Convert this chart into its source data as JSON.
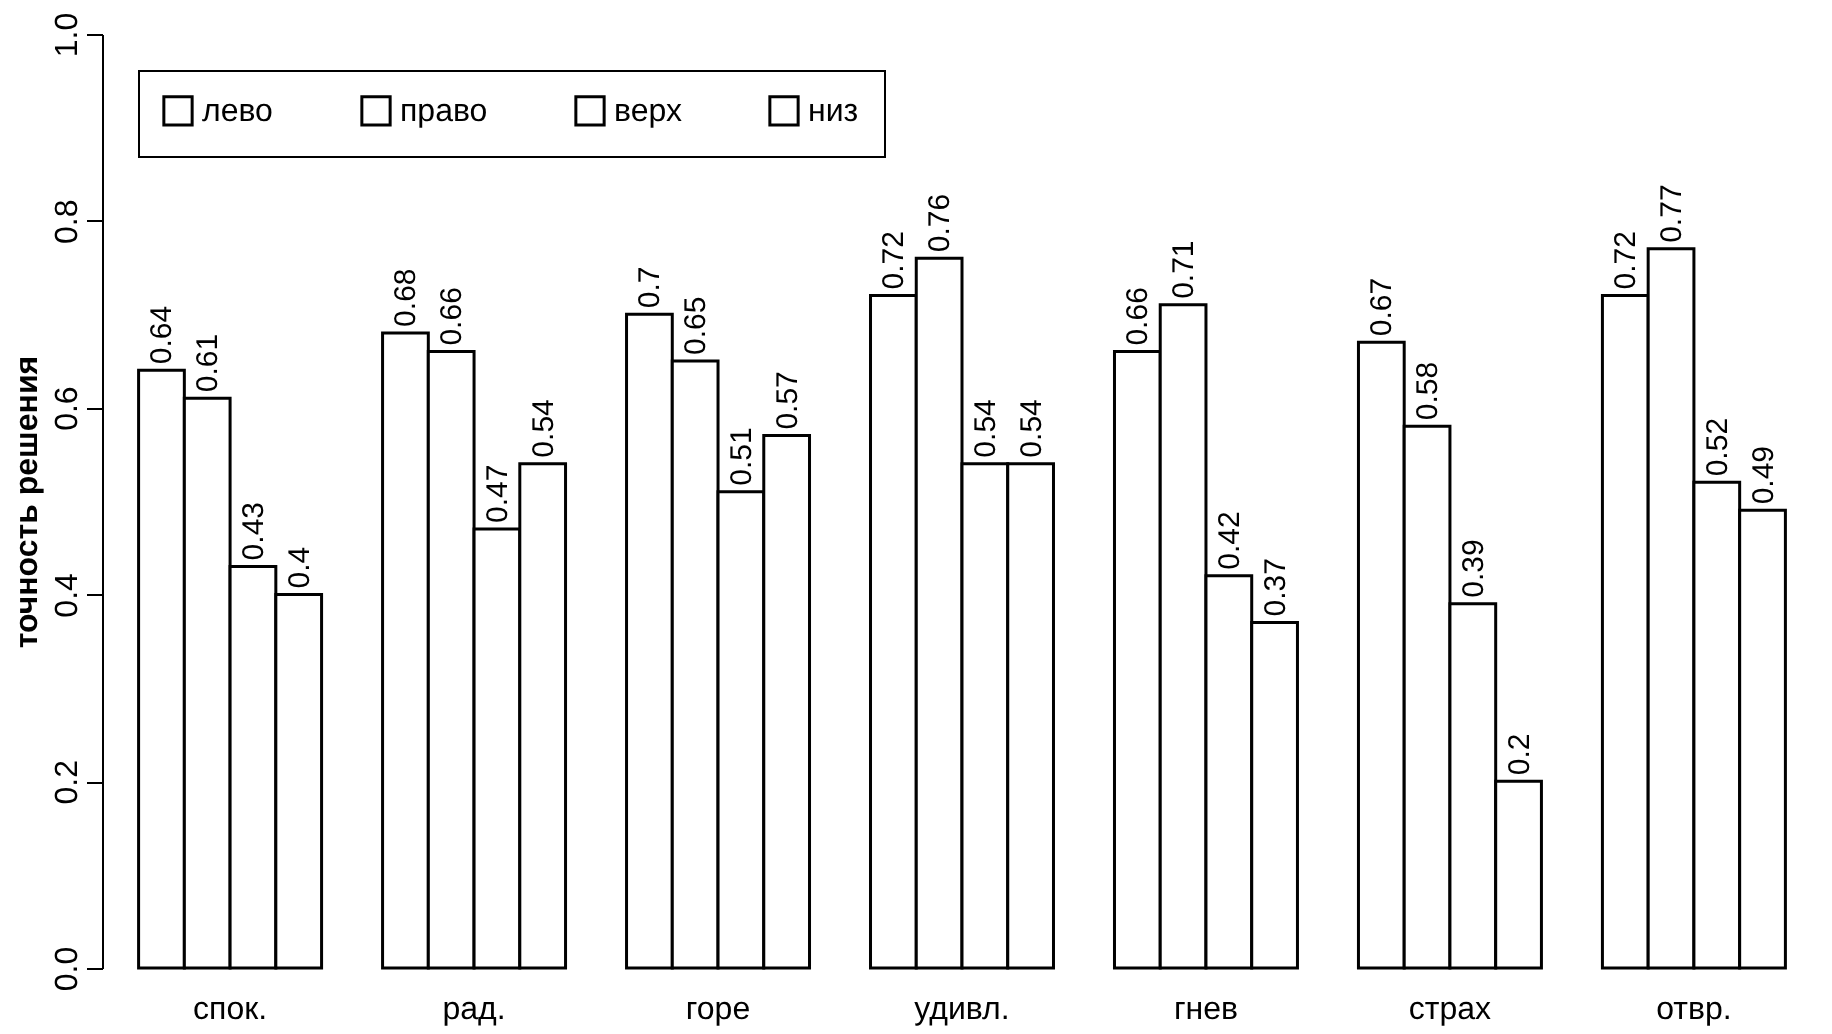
{
  "chart_data": {
    "type": "bar",
    "ylabel": "точность решения",
    "categories": [
      "спок.",
      "рад.",
      "горе",
      "удивл.",
      "гнев",
      "страх",
      "отвр."
    ],
    "series": [
      {
        "name": "лево",
        "color": "#ffffff",
        "values": [
          0.64,
          0.68,
          0.7,
          0.72,
          0.66,
          0.67,
          0.72
        ]
      },
      {
        "name": "право",
        "color": "#ffffff",
        "values": [
          0.61,
          0.66,
          0.65,
          0.76,
          0.71,
          0.58,
          0.77
        ]
      },
      {
        "name": "верх",
        "color": "#ffffff",
        "values": [
          0.43,
          0.47,
          0.51,
          0.54,
          0.42,
          0.39,
          0.52
        ]
      },
      {
        "name": "низ",
        "color": "#ffffff",
        "values": [
          0.4,
          0.54,
          0.57,
          0.54,
          0.37,
          0.2,
          0.49
        ]
      }
    ],
    "ylim": [
      0,
      1.0
    ],
    "yticks": [
      {
        "value": 0,
        "label": "0.0"
      },
      0.2,
      0.4,
      0.6,
      0.8,
      {
        "value": 1.0,
        "label": "1.0"
      }
    ],
    "data_labels": true,
    "legend": "top left",
    "grid": false
  }
}
